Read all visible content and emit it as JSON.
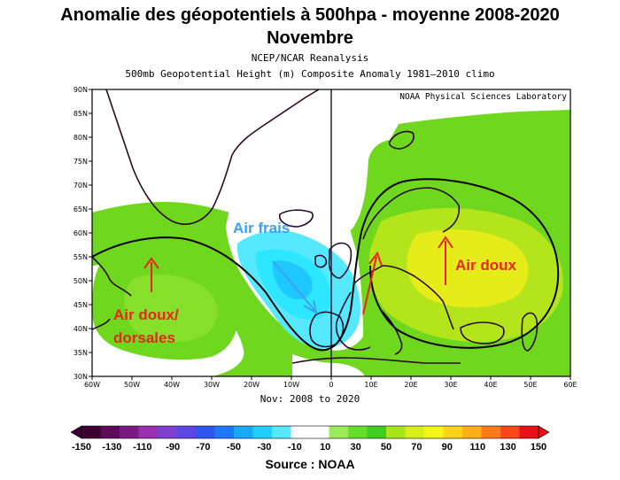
{
  "title": "Anomalie des géopotentiels à 500hpa - moyenne 2008-2020",
  "subtitle": "Novembre",
  "source_line": "NCEP/NCAR Reanalysis",
  "description_line": "500mb Geopotential Height (m) Composite Anomaly 1981–2010 climo",
  "lab_label": "NOAA Physical Sciences Laboratory",
  "period_label": "Nov: 2008 to 2020",
  "source_credit": "Source : NOAA",
  "lat_ticks": [
    "90N",
    "85N",
    "80N",
    "75N",
    "70N",
    "65N",
    "60N",
    "55N",
    "50N",
    "45N",
    "40N",
    "35N",
    "30N"
  ],
  "lon_ticks": [
    "60W",
    "50W",
    "40W",
    "30W",
    "20W",
    "10W",
    "0",
    "10E",
    "20E",
    "30E",
    "40E",
    "50E",
    "60E"
  ],
  "annotations": {
    "cold": "Air frais",
    "warm_west_1": "Air doux/",
    "warm_west_2": "dorsales",
    "warm_east": "Air doux"
  },
  "colorbar": {
    "labels": [
      "-150",
      "-130",
      "-110",
      "-90",
      "-70",
      "-50",
      "-30",
      "-10",
      "10",
      "30",
      "50",
      "70",
      "90",
      "110",
      "130",
      "150"
    ],
    "colors": [
      "#3a0032",
      "#5c0a5a",
      "#7b1a82",
      "#9a30b0",
      "#7f3fcf",
      "#5a48e0",
      "#2f55f0",
      "#1e78ff",
      "#18a8ff",
      "#1ecfff",
      "#55e8ff",
      "#ffffff",
      "#ffffff",
      "#9bea5a",
      "#66dd2a",
      "#3fce1f",
      "#a9e31a",
      "#d8ee1a",
      "#f5f51a",
      "#ffd21a",
      "#ffad1a",
      "#ff7a1a",
      "#ff451a",
      "#e8101a"
    ]
  },
  "colors": {
    "land_outline": "#2b0a25",
    "green": "#6fd81e",
    "yellow_green": "#b4e51c",
    "yellow": "#e6ec1a",
    "cyan": "#2de6ff",
    "cyan_light": "#7ff0ff",
    "blue": "#2aaaff",
    "annotation_red": "#e8251a",
    "annotation_blue": "#3aa0f0"
  }
}
